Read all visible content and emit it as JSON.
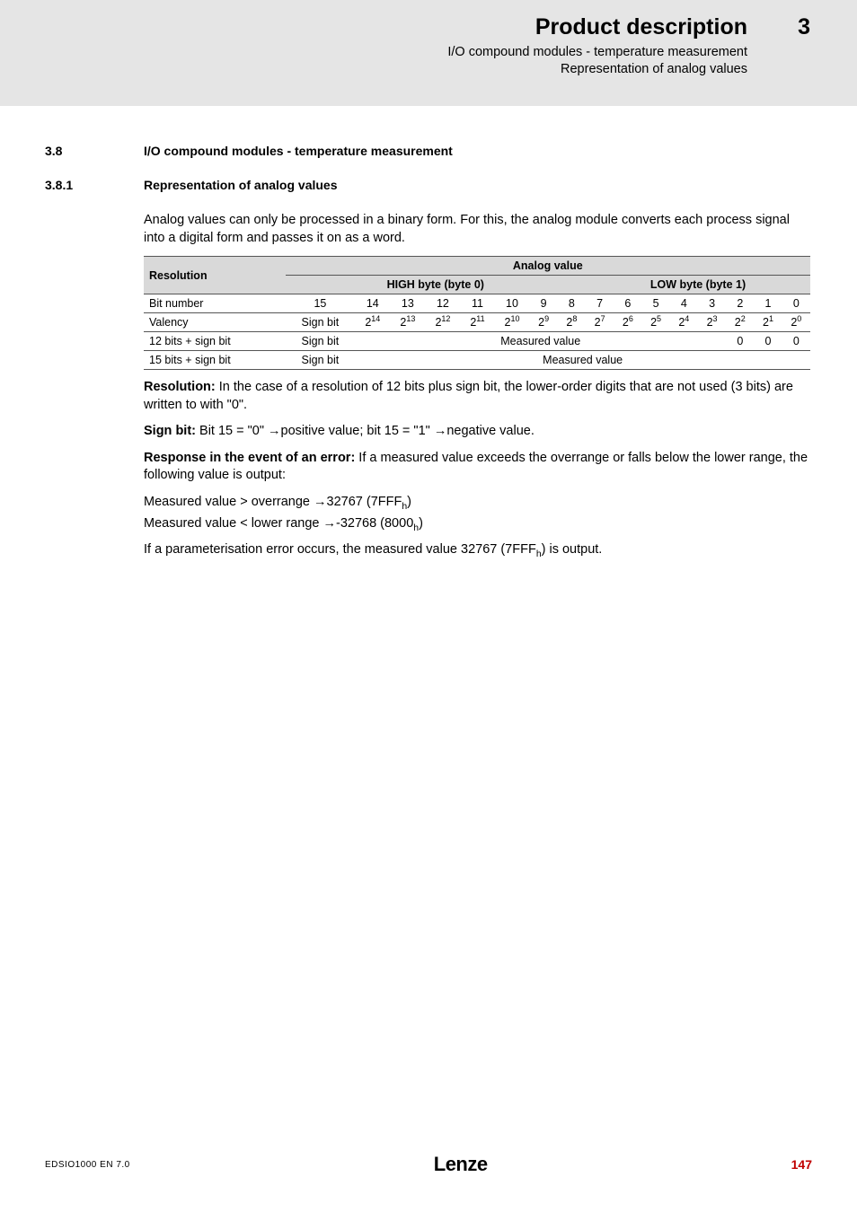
{
  "header": {
    "chapter_num": "3",
    "title": "Product description",
    "sub1": "I/O compound modules - temperature measurement",
    "sub2": "Representation of analog values"
  },
  "sec38": {
    "num": "3.8",
    "title": "I/O compound modules - temperature measurement"
  },
  "sec381": {
    "num": "3.8.1",
    "title": "Representation of analog values"
  },
  "para_intro": "Analog values can only be processed in a binary form. For this, the analog module converts each process signal into a digital form and passes it on as a word.",
  "table": {
    "hdr_resolution": "Resolution",
    "hdr_analog": "Analog value",
    "hdr_high": "HIGH byte (byte 0)",
    "hdr_low": "LOW byte (byte 1)",
    "row_bit_label": "Bit number",
    "bits": [
      "15",
      "14",
      "13",
      "12",
      "11",
      "10",
      "9",
      "8",
      "7",
      "6",
      "5",
      "4",
      "3",
      "2",
      "1",
      "0"
    ],
    "row_valency_label": "Valency",
    "valency_first": "Sign bit",
    "val_base": "2",
    "val_exp": [
      "14",
      "13",
      "12",
      "11",
      "10",
      "9",
      "8",
      "7",
      "6",
      "5",
      "4",
      "3",
      "2",
      "1",
      "0"
    ],
    "row_12_label": "12 bits + sign bit",
    "row_12_first": "Sign bit",
    "measured": "Measured value",
    "zeros": [
      "0",
      "0",
      "0"
    ],
    "row_15_label": "15 bits + sign bit",
    "row_15_first": "Sign bit"
  },
  "para_resolution_b": "Resolution:",
  "para_resolution": " In the case of a resolution of 12 bits plus sign bit, the lower-order digits that are not used (3 bits) are written to with \"0\".",
  "para_signbit_b": "Sign bit:",
  "para_signbit": " Bit 15 = \"0\" →positive value; bit 15 = \"1\" →negative value.",
  "para_response_b": "Response in the event of an error:",
  "para_response": " If a measured value exceeds the overrange or falls below the lower range, the following value is output:",
  "para_meas1_a": "Measured value > overrange →32767 (7FFF",
  "para_meas1_b": ")",
  "para_meas2_a": "Measured value < lower range →-32768 (8000",
  "para_meas2_b": ")",
  "hsub": "h",
  "para_param_a": "If a parameterisation error occurs, the measured value 32767 (7FFF",
  "para_param_b": ") is output.",
  "footer": {
    "left": "EDSIO1000 EN 7.0",
    "logo": "Lenze",
    "page": "147"
  },
  "colors": {
    "header_band": "#e5e5e5",
    "left_stripe": "#9a9a9a",
    "table_header_bg": "#d9d9d9",
    "page_num": "#c00000"
  }
}
